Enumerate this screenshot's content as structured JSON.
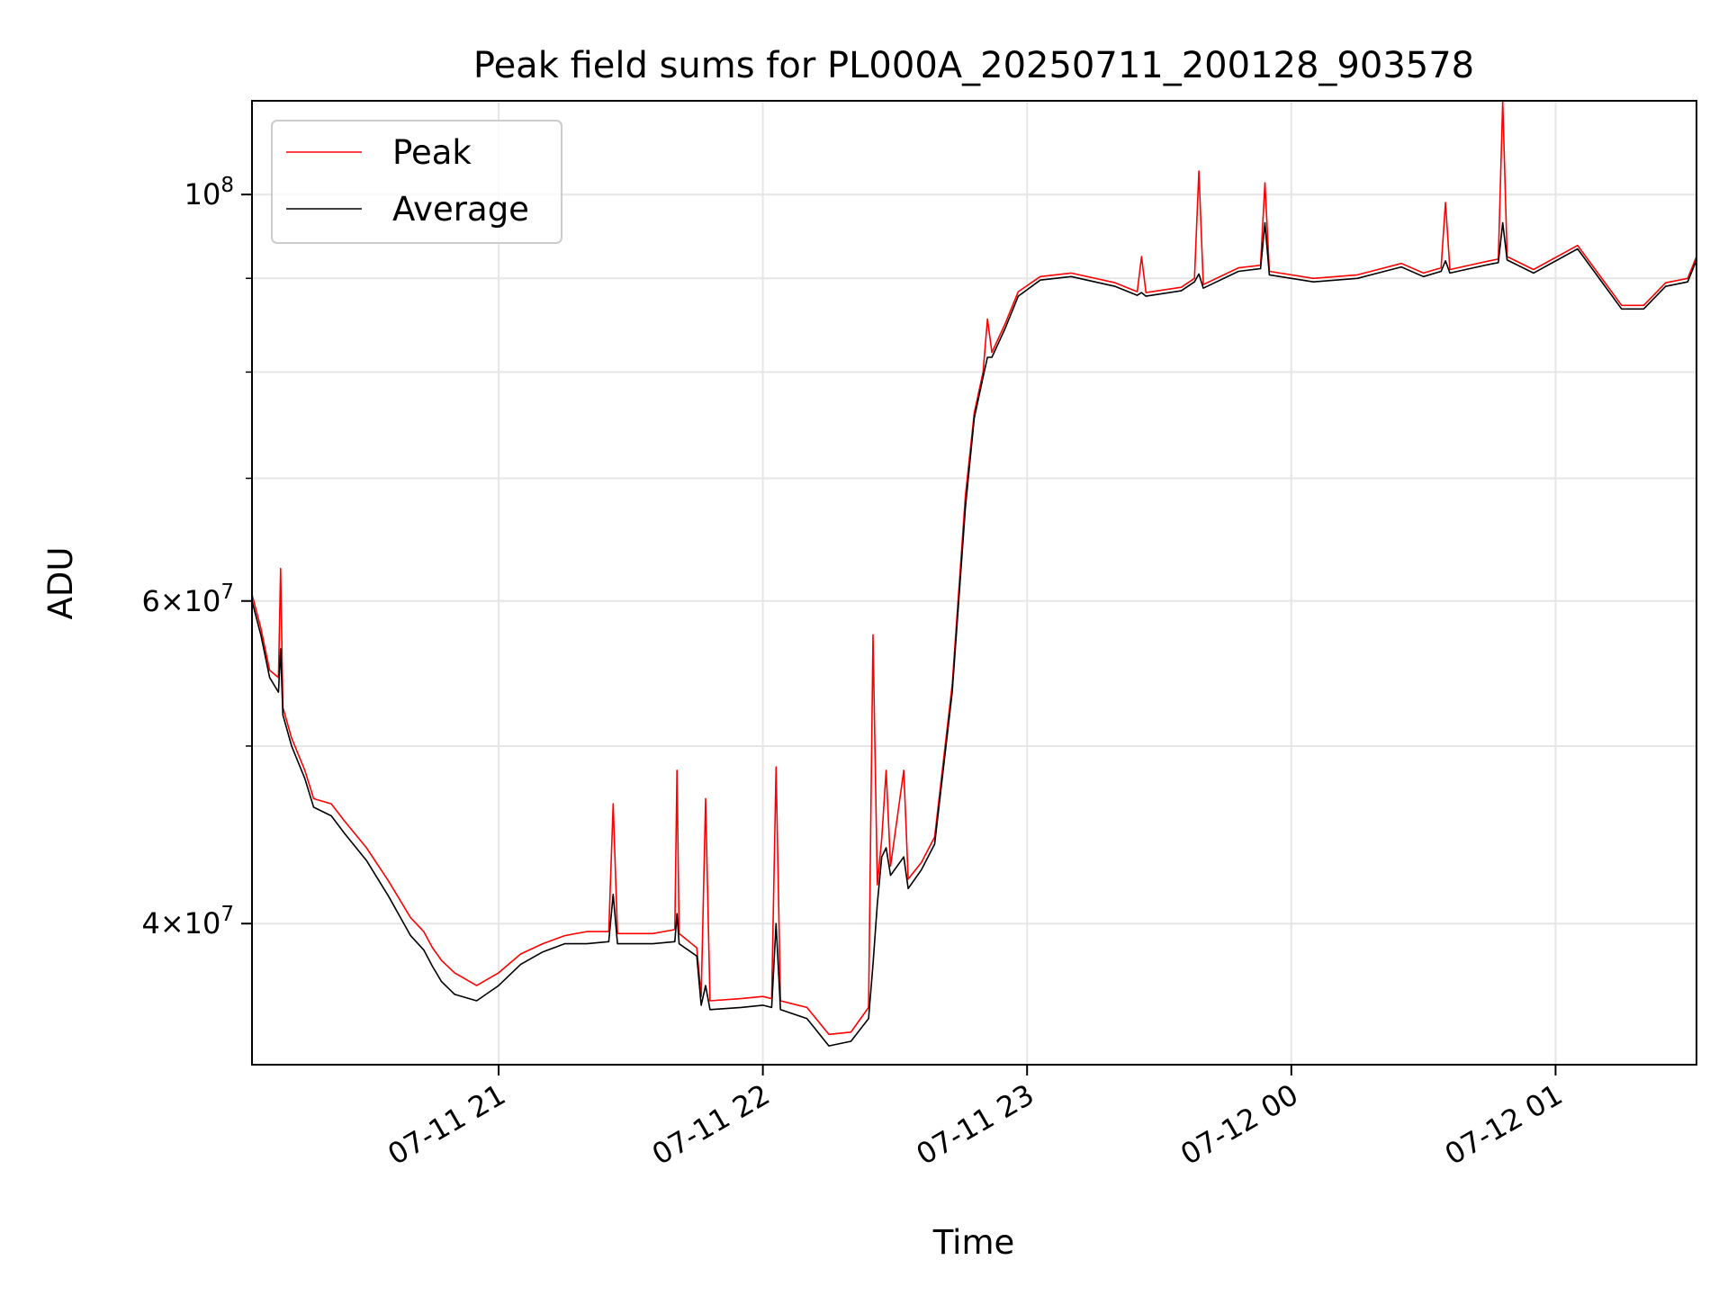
{
  "chart_data": {
    "type": "line",
    "title": "Peak field sums for PL000A_20250711_200128_903578",
    "xlabel": "Time",
    "ylabel": "ADU",
    "y_scale": "log",
    "grid": true,
    "legend_position": "top-left",
    "xlim": [
      "2025-07-11 20:04",
      "2025-07-12 01:32"
    ],
    "ylim": [
      33500000,
      112500000
    ],
    "x_ticks": [
      {
        "value": "2025-07-11 21:00",
        "label": "07-11 21"
      },
      {
        "value": "2025-07-11 22:00",
        "label": "07-11 22"
      },
      {
        "value": "2025-07-11 23:00",
        "label": "07-11 23"
      },
      {
        "value": "2025-07-12 00:00",
        "label": "07-12 00"
      },
      {
        "value": "2025-07-12 01:00",
        "label": "07-12 01"
      }
    ],
    "y_ticks_major": [
      {
        "value": 40000000,
        "base": "4",
        "exp": "7"
      },
      {
        "value": 60000000,
        "base": "6",
        "exp": "7"
      },
      {
        "value": 100000000,
        "base": "10",
        "exp": "8"
      }
    ],
    "y_ticks_minor": [
      50000000,
      70000000,
      80000000,
      90000000
    ],
    "series": [
      {
        "name": "Peak",
        "color": "#ff0000",
        "points": [
          [
            "2025-07-11 20:04",
            60500000
          ],
          [
            "2025-07-11 20:06",
            58000000
          ],
          [
            "2025-07-11 20:08",
            55000000
          ],
          [
            "2025-07-11 20:10",
            54500000
          ],
          [
            "2025-07-11 20:10.5",
            62500000
          ],
          [
            "2025-07-11 20:11",
            52500000
          ],
          [
            "2025-07-11 20:13",
            50500000
          ],
          [
            "2025-07-11 20:16",
            48500000
          ],
          [
            "2025-07-11 20:18",
            46800000
          ],
          [
            "2025-07-11 20:22",
            46500000
          ],
          [
            "2025-07-11 20:25",
            45500000
          ],
          [
            "2025-07-11 20:30",
            44000000
          ],
          [
            "2025-07-11 20:35",
            42200000
          ],
          [
            "2025-07-11 20:40",
            40300000
          ],
          [
            "2025-07-11 20:43",
            39600000
          ],
          [
            "2025-07-11 20:45",
            38800000
          ],
          [
            "2025-07-11 20:47",
            38200000
          ],
          [
            "2025-07-11 20:50",
            37600000
          ],
          [
            "2025-07-11 20:55",
            37000000
          ],
          [
            "2025-07-11 21:00",
            37600000
          ],
          [
            "2025-07-11 21:05",
            38500000
          ],
          [
            "2025-07-11 21:10",
            39000000
          ],
          [
            "2025-07-11 21:15",
            39400000
          ],
          [
            "2025-07-11 21:20",
            39600000
          ],
          [
            "2025-07-11 21:25",
            39600000
          ],
          [
            "2025-07-11 21:26",
            46500000
          ],
          [
            "2025-07-11 21:27",
            39500000
          ],
          [
            "2025-07-11 21:35",
            39500000
          ],
          [
            "2025-07-11 21:40",
            39700000
          ],
          [
            "2025-07-11 21:40.5",
            48500000
          ],
          [
            "2025-07-11 21:41",
            39500000
          ],
          [
            "2025-07-11 21:45",
            38800000
          ],
          [
            "2025-07-11 21:46",
            36500000
          ],
          [
            "2025-07-11 21:47",
            46800000
          ],
          [
            "2025-07-11 21:48",
            36300000
          ],
          [
            "2025-07-11 21:55",
            36400000
          ],
          [
            "2025-07-11 22:00",
            36500000
          ],
          [
            "2025-07-11 22:02",
            36400000
          ],
          [
            "2025-07-11 22:03",
            48700000
          ],
          [
            "2025-07-11 22:04",
            36300000
          ],
          [
            "2025-07-11 22:10",
            36000000
          ],
          [
            "2025-07-11 22:15",
            34800000
          ],
          [
            "2025-07-11 22:20",
            34900000
          ],
          [
            "2025-07-11 22:24",
            36000000
          ],
          [
            "2025-07-11 22:25",
            57500000
          ],
          [
            "2025-07-11 22:26",
            42000000
          ],
          [
            "2025-07-11 22:27",
            44500000
          ],
          [
            "2025-07-11 22:28",
            48500000
          ],
          [
            "2025-07-11 22:29",
            43000000
          ],
          [
            "2025-07-11 22:32",
            48500000
          ],
          [
            "2025-07-11 22:33",
            42300000
          ],
          [
            "2025-07-11 22:36",
            43200000
          ],
          [
            "2025-07-11 22:39",
            44600000
          ],
          [
            "2025-07-11 22:43",
            54000000
          ],
          [
            "2025-07-11 22:46",
            68500000
          ],
          [
            "2025-07-11 22:48",
            76000000
          ],
          [
            "2025-07-11 22:50",
            80000000
          ],
          [
            "2025-07-11 22:51",
            85500000
          ],
          [
            "2025-07-11 22:52",
            82000000
          ],
          [
            "2025-07-11 22:55",
            85000000
          ],
          [
            "2025-07-11 22:58",
            88500000
          ],
          [
            "2025-07-11 23:03",
            90200000
          ],
          [
            "2025-07-11 23:10",
            90600000
          ],
          [
            "2025-07-11 23:20",
            89500000
          ],
          [
            "2025-07-11 23:25",
            88500000
          ],
          [
            "2025-07-11 23:26",
            92500000
          ],
          [
            "2025-07-11 23:27",
            88400000
          ],
          [
            "2025-07-11 23:35",
            89000000
          ],
          [
            "2025-07-11 23:38",
            90000000
          ],
          [
            "2025-07-11 23:39",
            103000000
          ],
          [
            "2025-07-11 23:40",
            89300000
          ],
          [
            "2025-07-11 23:48",
            91200000
          ],
          [
            "2025-07-11 23:53",
            91500000
          ],
          [
            "2025-07-11 23:54",
            101500000
          ],
          [
            "2025-07-11 23:55",
            90800000
          ],
          [
            "2025-07-12 00:05",
            90000000
          ],
          [
            "2025-07-12 00:15",
            90400000
          ],
          [
            "2025-07-12 00:25",
            91700000
          ],
          [
            "2025-07-12 00:30",
            90600000
          ],
          [
            "2025-07-12 00:34",
            91200000
          ],
          [
            "2025-07-12 00:35",
            99000000
          ],
          [
            "2025-07-12 00:36",
            91000000
          ],
          [
            "2025-07-12 00:45",
            92000000
          ],
          [
            "2025-07-12 00:47",
            92200000
          ],
          [
            "2025-07-12 00:48",
            112500000
          ],
          [
            "2025-07-12 00:49",
            92500000
          ],
          [
            "2025-07-12 00:55",
            91000000
          ],
          [
            "2025-07-12 01:05",
            93800000
          ],
          [
            "2025-07-12 01:15",
            87000000
          ],
          [
            "2025-07-12 01:20",
            87000000
          ],
          [
            "2025-07-12 01:25",
            89500000
          ],
          [
            "2025-07-12 01:30",
            90000000
          ],
          [
            "2025-07-12 01:32",
            92500000
          ]
        ]
      },
      {
        "name": "Average",
        "color": "#000000",
        "points": [
          [
            "2025-07-11 20:04",
            60000000
          ],
          [
            "2025-07-11 20:06",
            57500000
          ],
          [
            "2025-07-11 20:08",
            54500000
          ],
          [
            "2025-07-11 20:10",
            53500000
          ],
          [
            "2025-07-11 20:10.5",
            56500000
          ],
          [
            "2025-07-11 20:11",
            52000000
          ],
          [
            "2025-07-11 20:13",
            50000000
          ],
          [
            "2025-07-11 20:16",
            48000000
          ],
          [
            "2025-07-11 20:18",
            46300000
          ],
          [
            "2025-07-11 20:22",
            45800000
          ],
          [
            "2025-07-11 20:25",
            44800000
          ],
          [
            "2025-07-11 20:30",
            43300000
          ],
          [
            "2025-07-11 20:35",
            41400000
          ],
          [
            "2025-07-11 20:40",
            39400000
          ],
          [
            "2025-07-11 20:43",
            38700000
          ],
          [
            "2025-07-11 20:45",
            37900000
          ],
          [
            "2025-07-11 20:47",
            37200000
          ],
          [
            "2025-07-11 20:50",
            36600000
          ],
          [
            "2025-07-11 20:55",
            36300000
          ],
          [
            "2025-07-11 21:00",
            37000000
          ],
          [
            "2025-07-11 21:05",
            38000000
          ],
          [
            "2025-07-11 21:10",
            38600000
          ],
          [
            "2025-07-11 21:15",
            39000000
          ],
          [
            "2025-07-11 21:20",
            39000000
          ],
          [
            "2025-07-11 21:25",
            39100000
          ],
          [
            "2025-07-11 21:26",
            41500000
          ],
          [
            "2025-07-11 21:27",
            39000000
          ],
          [
            "2025-07-11 21:35",
            39000000
          ],
          [
            "2025-07-11 21:40",
            39100000
          ],
          [
            "2025-07-11 21:40.5",
            40500000
          ],
          [
            "2025-07-11 21:41",
            39000000
          ],
          [
            "2025-07-11 21:45",
            38400000
          ],
          [
            "2025-07-11 21:46",
            36100000
          ],
          [
            "2025-07-11 21:47",
            37000000
          ],
          [
            "2025-07-11 21:48",
            35900000
          ],
          [
            "2025-07-11 21:55",
            36000000
          ],
          [
            "2025-07-11 22:00",
            36100000
          ],
          [
            "2025-07-11 22:02",
            36000000
          ],
          [
            "2025-07-11 22:03",
            40000000
          ],
          [
            "2025-07-11 22:04",
            35900000
          ],
          [
            "2025-07-11 22:10",
            35500000
          ],
          [
            "2025-07-11 22:15",
            34300000
          ],
          [
            "2025-07-11 22:20",
            34500000
          ],
          [
            "2025-07-11 22:24",
            35500000
          ],
          [
            "2025-07-11 22:25",
            38000000
          ],
          [
            "2025-07-11 22:26",
            41000000
          ],
          [
            "2025-07-11 22:27",
            43500000
          ],
          [
            "2025-07-11 22:28",
            44000000
          ],
          [
            "2025-07-11 22:29",
            42500000
          ],
          [
            "2025-07-11 22:32",
            43500000
          ],
          [
            "2025-07-11 22:33",
            41800000
          ],
          [
            "2025-07-11 22:36",
            42800000
          ],
          [
            "2025-07-11 22:39",
            44200000
          ],
          [
            "2025-07-11 22:43",
            53500000
          ],
          [
            "2025-07-11 22:46",
            67500000
          ],
          [
            "2025-07-11 22:48",
            75500000
          ],
          [
            "2025-07-11 22:50",
            79500000
          ],
          [
            "2025-07-11 22:51",
            81500000
          ],
          [
            "2025-07-11 22:52",
            81500000
          ],
          [
            "2025-07-11 22:55",
            84500000
          ],
          [
            "2025-07-11 22:58",
            88000000
          ],
          [
            "2025-07-11 23:03",
            89800000
          ],
          [
            "2025-07-11 23:10",
            90200000
          ],
          [
            "2025-07-11 23:20",
            89100000
          ],
          [
            "2025-07-11 23:25",
            88100000
          ],
          [
            "2025-07-11 23:26",
            88400000
          ],
          [
            "2025-07-11 23:27",
            88000000
          ],
          [
            "2025-07-11 23:35",
            88600000
          ],
          [
            "2025-07-11 23:38",
            89600000
          ],
          [
            "2025-07-11 23:39",
            90500000
          ],
          [
            "2025-07-11 23:40",
            88900000
          ],
          [
            "2025-07-11 23:48",
            90800000
          ],
          [
            "2025-07-11 23:53",
            91100000
          ],
          [
            "2025-07-11 23:54",
            96500000
          ],
          [
            "2025-07-11 23:55",
            90400000
          ],
          [
            "2025-07-12 00:05",
            89600000
          ],
          [
            "2025-07-12 00:15",
            90000000
          ],
          [
            "2025-07-12 00:25",
            91300000
          ],
          [
            "2025-07-12 00:30",
            90200000
          ],
          [
            "2025-07-12 00:34",
            90800000
          ],
          [
            "2025-07-12 00:35",
            92000000
          ],
          [
            "2025-07-12 00:36",
            90600000
          ],
          [
            "2025-07-12 00:45",
            91600000
          ],
          [
            "2025-07-12 00:47",
            91800000
          ],
          [
            "2025-07-12 00:48",
            96500000
          ],
          [
            "2025-07-12 00:49",
            92100000
          ],
          [
            "2025-07-12 00:55",
            90600000
          ],
          [
            "2025-07-12 01:05",
            93400000
          ],
          [
            "2025-07-12 01:15",
            86600000
          ],
          [
            "2025-07-12 01:20",
            86600000
          ],
          [
            "2025-07-12 01:25",
            89100000
          ],
          [
            "2025-07-12 01:30",
            89600000
          ],
          [
            "2025-07-12 01:32",
            92100000
          ]
        ]
      }
    ]
  }
}
